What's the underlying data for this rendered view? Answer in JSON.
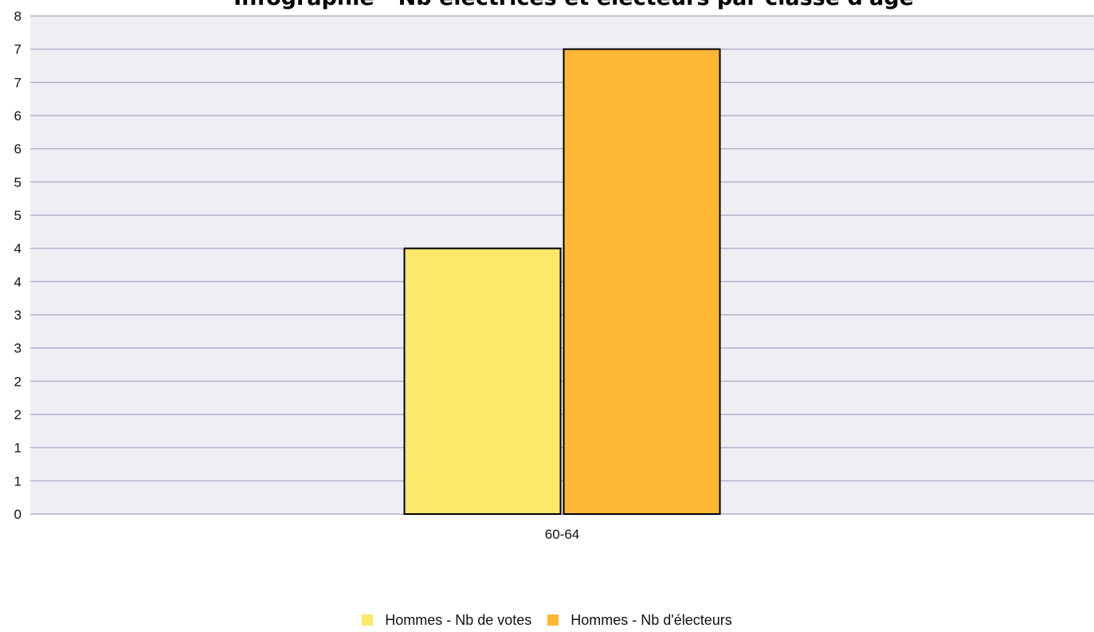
{
  "chart_data": {
    "type": "bar",
    "title": "Infographie - Nb électrices et électeurs par classe d'âge",
    "categories": [
      "60-64"
    ],
    "series": [
      {
        "name": "Hommes - Nb de votes",
        "values": [
          4
        ],
        "color": "#FEE86A"
      },
      {
        "name": "Hommes - Nb d'électeurs",
        "values": [
          7
        ],
        "color": "#FDB734"
      }
    ],
    "y_tick_labels": [
      "0",
      "1",
      "1",
      "2",
      "2",
      "3",
      "3",
      "4",
      "4",
      "5",
      "5",
      "6",
      "6",
      "7",
      "7",
      "8"
    ],
    "ylim": [
      0,
      7.5
    ],
    "xlabel": "",
    "ylabel": "",
    "grid": true,
    "legend_position": "bottom",
    "colors": {
      "plot_background": "#EFEEF4",
      "grid": "#B4B2C8"
    }
  }
}
